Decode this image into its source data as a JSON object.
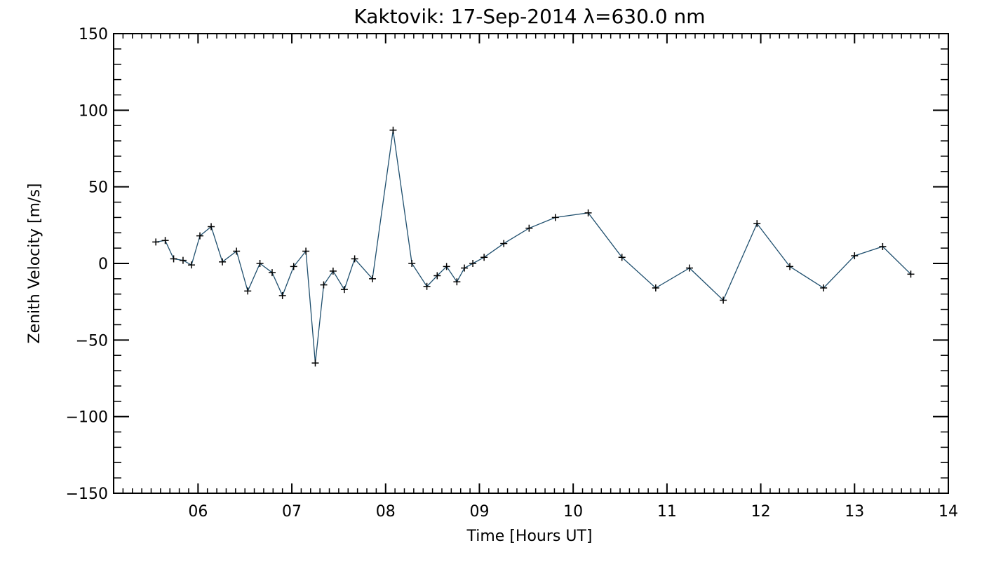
{
  "chart_data": {
    "type": "line",
    "title": "Kaktovik: 17-Sep-2014 λ=630.0 nm",
    "xlabel": "Time [Hours UT]",
    "ylabel": "Zenith Velocity [m/s]",
    "xlim": [
      5.1,
      14.0
    ],
    "ylim": [
      -150,
      150
    ],
    "x_ticks": [
      6,
      7,
      8,
      9,
      10,
      11,
      12,
      13,
      14
    ],
    "x_tick_labels": [
      "06",
      "07",
      "08",
      "09",
      "10",
      "11",
      "12",
      "13",
      "14"
    ],
    "y_ticks": [
      -150,
      -100,
      -50,
      0,
      50,
      100,
      150
    ],
    "y_tick_labels": [
      "−150",
      "−100",
      "−50",
      "0",
      "50",
      "100",
      "150"
    ],
    "grid": false,
    "line_color": "#1f4f6e",
    "marker_color": "#000000",
    "series": [
      {
        "x": [
          5.55,
          5.65,
          5.74,
          5.84,
          5.93,
          6.02,
          6.14,
          6.26,
          6.41,
          6.53,
          6.66,
          6.79,
          6.9,
          7.02,
          7.15,
          7.25,
          7.34,
          7.44,
          7.56,
          7.67,
          7.86,
          8.08,
          8.28,
          8.44,
          8.55,
          8.65,
          8.76,
          8.84,
          8.93,
          9.05,
          9.26,
          9.53,
          9.81,
          10.16,
          10.52,
          10.88,
          11.24,
          11.6,
          11.96,
          12.31,
          12.67,
          13.0,
          13.3,
          13.6
        ],
        "y": [
          14,
          15,
          3,
          2,
          -1,
          18,
          24,
          1,
          8,
          -18,
          0,
          -6,
          -21,
          -2,
          8,
          -65,
          -14,
          -5,
          -17,
          3,
          -10,
          87,
          0,
          -15,
          -8,
          -2,
          -12,
          -3,
          0,
          4,
          13,
          23,
          30,
          33,
          4,
          -16,
          -3,
          -24,
          26,
          -2,
          -16,
          5,
          11,
          -7
        ]
      }
    ]
  }
}
